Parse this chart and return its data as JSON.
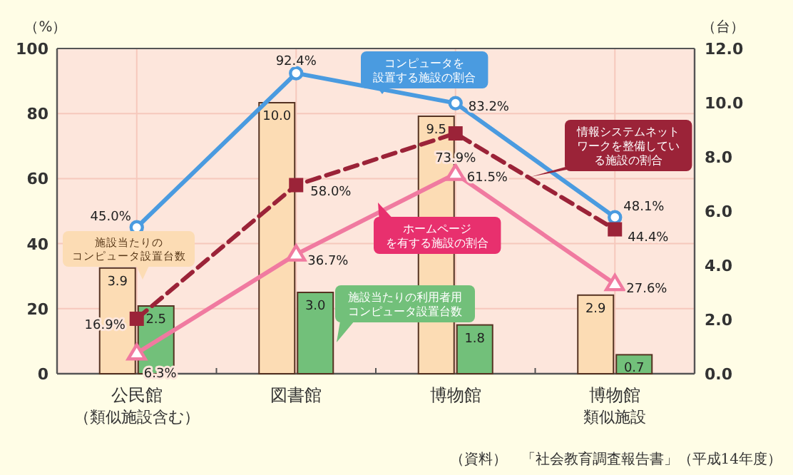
{
  "chart_data": {
    "type": "bar",
    "categories": [
      "公民館（類似施設含む）",
      "図書館",
      "博物館",
      "博物館類似施設"
    ],
    "ylabel": "（%）",
    "y2label": "（台）",
    "ylim": [
      0,
      100
    ],
    "yticks": [
      0,
      20,
      40,
      60,
      80,
      100
    ],
    "y2lim": [
      0,
      12
    ],
    "y2ticks": [
      {
        "value": 0,
        "label": "0.0"
      },
      {
        "value": 2,
        "label": "2.0"
      },
      {
        "value": 4,
        "label": "4.0"
      },
      {
        "value": 6,
        "label": "6.0"
      },
      {
        "value": 8,
        "label": "8.0"
      },
      {
        "value": 10,
        "label": "10.0"
      },
      {
        "value": 12,
        "label": "12.0"
      }
    ],
    "grid": true,
    "legend": false,
    "series": [
      {
        "name": "施設当たりのコンピュータ設置台数",
        "axis": "y2",
        "color": "#fcdcb4",
        "values": [
          3.9,
          10.0,
          9.5,
          2.9
        ],
        "value_labels": [
          "3.9",
          "10.0",
          "9.5",
          "2.9"
        ]
      },
      {
        "name": "施設当たりの利用者用コンピュータ設置台数",
        "axis": "y2",
        "color": "#72c07a",
        "values": [
          2.5,
          3.0,
          1.8,
          0.7
        ],
        "value_labels": [
          "2.5",
          "3.0",
          "1.8",
          "0.7"
        ]
      },
      {
        "name": "コンピュータを設置する施設の割合",
        "type": "line",
        "color": "#4a9be0",
        "marker": "circle",
        "line_style": "solid",
        "values": [
          45.0,
          92.4,
          83.2,
          48.1
        ],
        "value_labels": [
          "45.0%",
          "92.4%",
          "83.2%",
          "48.1%"
        ]
      },
      {
        "name": "情報システムネットワークを整備している施設の割合",
        "type": "line",
        "color": "#9b2338",
        "marker": "square",
        "line_style": "dashed",
        "values": [
          16.9,
          58.0,
          73.9,
          44.4
        ],
        "value_labels": [
          "16.9%",
          "58.0%",
          "73.9%",
          "44.4%"
        ]
      },
      {
        "name": "ホームページを有する施設の割合",
        "type": "line",
        "color": "#f07aa0",
        "marker": "triangle",
        "line_style": "solid",
        "values": [
          6.3,
          36.7,
          61.5,
          27.6
        ],
        "value_labels": [
          "6.3%",
          "36.7%",
          "61.5%",
          "27.6%"
        ]
      }
    ],
    "annotations": [
      "（資料）　「社会教育調査報告書」（平成14年度）"
    ]
  }
}
